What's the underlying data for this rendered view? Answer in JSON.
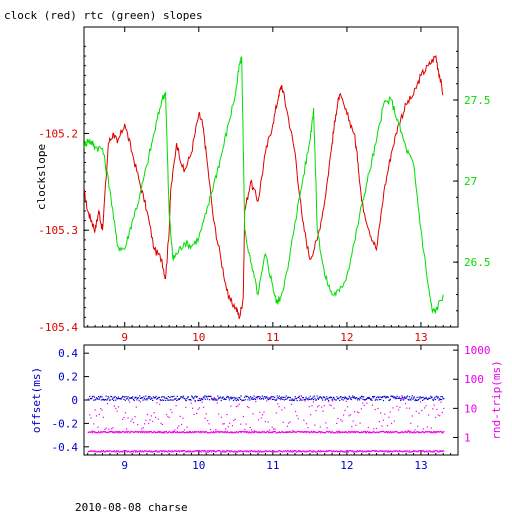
{
  "title": "clock (red) rtc (green) slopes",
  "footer": "2010-08-08 charse",
  "colors": {
    "clock": "#dd0000",
    "rtc": "#00dd00",
    "offset": "#0000cc",
    "rtt": "#ee00ee",
    "axis": "#000000"
  },
  "chart_data": [
    {
      "type": "line",
      "title": "clock (red) rtc (green) slopes",
      "xlabel": "",
      "xlim": [
        8.45,
        13.5
      ],
      "xticks": [
        9,
        10,
        11,
        12,
        13
      ],
      "ylabel": "clockslope",
      "ylim": [
        -105.4,
        -105.09
      ],
      "yticks": [
        -105.2,
        -105.3,
        -105.4
      ],
      "y2lim": [
        26.1,
        27.95
      ],
      "y2ticks": [
        26.5,
        27,
        27.5
      ],
      "grid": false,
      "series": [
        {
          "name": "clock (red)",
          "axis": "left",
          "color": "#dd0000",
          "x": [
            8.45,
            8.5,
            8.55,
            8.6,
            8.65,
            8.7,
            8.78,
            8.85,
            8.9,
            9.0,
            9.1,
            9.2,
            9.3,
            9.4,
            9.5,
            9.55,
            9.6,
            9.62,
            9.7,
            9.8,
            9.9,
            10.0,
            10.05,
            10.1,
            10.2,
            10.3,
            10.4,
            10.5,
            10.55,
            10.6,
            10.62,
            10.7,
            10.8,
            10.9,
            11.0,
            11.08,
            11.12,
            11.2,
            11.3,
            11.4,
            11.5,
            11.6,
            11.7,
            11.8,
            11.85,
            11.9,
            12.0,
            12.1,
            12.15,
            12.2,
            12.3,
            12.4,
            12.5,
            12.6,
            12.7,
            12.8,
            12.9,
            13.0,
            13.1,
            13.2,
            13.25,
            13.3
          ],
          "y": [
            -105.26,
            -105.28,
            -105.29,
            -105.3,
            -105.28,
            -105.3,
            -105.21,
            -105.2,
            -105.21,
            -105.19,
            -105.22,
            -105.25,
            -105.28,
            -105.32,
            -105.33,
            -105.35,
            -105.3,
            -105.26,
            -105.21,
            -105.24,
            -105.22,
            -105.18,
            -105.19,
            -105.22,
            -105.29,
            -105.33,
            -105.37,
            -105.38,
            -105.39,
            -105.37,
            -105.28,
            -105.25,
            -105.27,
            -105.22,
            -105.19,
            -105.16,
            -105.15,
            -105.18,
            -105.22,
            -105.29,
            -105.33,
            -105.31,
            -105.27,
            -105.21,
            -105.18,
            -105.16,
            -105.18,
            -105.2,
            -105.23,
            -105.27,
            -105.3,
            -105.32,
            -105.26,
            -105.22,
            -105.19,
            -105.17,
            -105.16,
            -105.14,
            -105.13,
            -105.12,
            -105.14,
            -105.16
          ]
        },
        {
          "name": "rtc (green)",
          "axis": "right",
          "color": "#00dd00",
          "x": [
            8.45,
            8.5,
            8.55,
            8.6,
            8.7,
            8.8,
            8.9,
            9.0,
            9.1,
            9.2,
            9.3,
            9.4,
            9.5,
            9.55,
            9.6,
            9.65,
            9.7,
            9.8,
            9.9,
            10.0,
            10.1,
            10.2,
            10.3,
            10.4,
            10.5,
            10.55,
            10.58,
            10.62,
            10.7,
            10.8,
            10.9,
            11.0,
            11.05,
            11.1,
            11.2,
            11.3,
            11.4,
            11.5,
            11.55,
            11.6,
            11.7,
            11.8,
            11.9,
            12.0,
            12.1,
            12.2,
            12.3,
            12.4,
            12.5,
            12.6,
            12.7,
            12.8,
            12.9,
            13.0,
            13.1,
            13.15,
            13.2,
            13.3
          ],
          "y": [
            27.22,
            27.25,
            27.24,
            27.21,
            27.2,
            26.95,
            26.6,
            26.58,
            26.75,
            26.9,
            27.1,
            27.3,
            27.5,
            27.55,
            26.8,
            26.52,
            26.55,
            26.62,
            26.6,
            26.65,
            26.8,
            26.98,
            27.15,
            27.35,
            27.55,
            27.72,
            27.75,
            26.7,
            26.5,
            26.3,
            26.55,
            26.35,
            26.25,
            26.28,
            26.45,
            26.75,
            27.0,
            27.25,
            27.45,
            26.7,
            26.42,
            26.3,
            26.32,
            26.42,
            26.62,
            26.85,
            27.05,
            27.25,
            27.48,
            27.5,
            27.35,
            27.2,
            27.1,
            26.7,
            26.35,
            26.2,
            26.2,
            26.3
          ]
        }
      ]
    },
    {
      "type": "scatter",
      "title": "",
      "xlim": [
        8.45,
        13.5
      ],
      "xticks": [
        9,
        10,
        11,
        12,
        13
      ],
      "ylabel": "offset(ms)",
      "ylim": [
        -0.47,
        0.47
      ],
      "yticks": [
        0.4,
        0.2,
        0,
        -0.2,
        -0.4
      ],
      "y2label": "rnd-trip(ms)",
      "y2scale": "log",
      "y2lim": [
        0.25,
        1500
      ],
      "y2ticks": [
        1000,
        100,
        10,
        1
      ],
      "grid": false,
      "series": [
        {
          "name": "offset",
          "axis": "left",
          "color": "#0000cc",
          "x_range": [
            8.5,
            13.3
          ],
          "typical": 0.02,
          "spread": 0.02
        },
        {
          "name": "rnd-trip scattered",
          "axis": "right",
          "color": "#ee00ee",
          "x_range": [
            8.5,
            13.3
          ],
          "typical": 6,
          "spread_decades": 0.6
        },
        {
          "name": "rnd-trip band",
          "axis": "right",
          "color": "#ee00ee",
          "x_range": [
            8.5,
            13.3
          ],
          "typical": 1.6
        },
        {
          "name": "rnd-trip low band",
          "axis": "right",
          "color": "#ee00ee",
          "x_range": [
            8.5,
            13.3
          ],
          "typical": 0.35
        }
      ]
    }
  ]
}
